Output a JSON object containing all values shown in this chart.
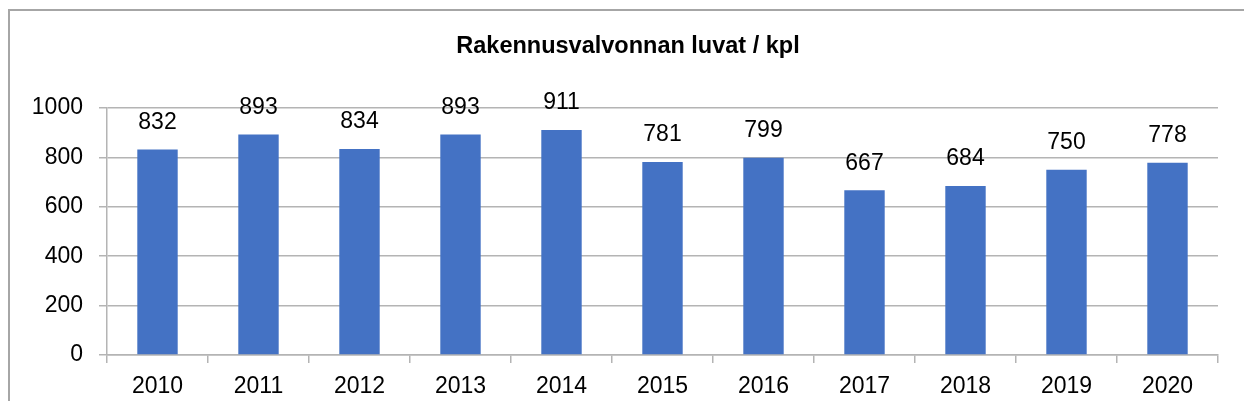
{
  "chart_data": {
    "type": "bar",
    "title": "Rakennusvalvonnan luvat / kpl",
    "categories": [
      "2010",
      "2011",
      "2012",
      "2013",
      "2014",
      "2015",
      "2016",
      "2017",
      "2018",
      "2019",
      "2020"
    ],
    "values": [
      832,
      893,
      834,
      893,
      911,
      781,
      799,
      667,
      684,
      750,
      778
    ],
    "color": "#4472c4",
    "ylim": [
      0,
      1000
    ],
    "yticks": [
      0,
      200,
      400,
      600,
      800,
      1000
    ],
    "grid": "y",
    "data_labels": true
  }
}
